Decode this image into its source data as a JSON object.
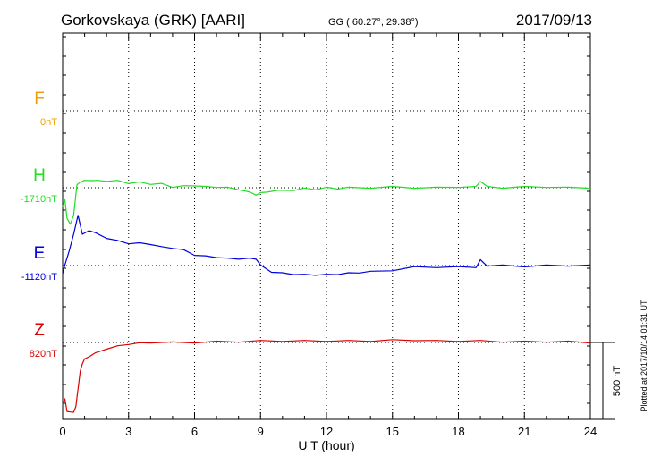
{
  "header": {
    "station": "Gorkovskaya (GRK)  [AARI]",
    "coords": "GG ( 60.27°,  29.38°)",
    "date": "2017/09/13"
  },
  "side_note": "Plotted at 2017/10/14 01:31  UT",
  "chart_data": {
    "type": "line",
    "title": "Gorkovskaya (GRK)  [AARI]",
    "xlabel": "U T (hour)",
    "xlim": [
      0,
      24
    ],
    "xticks": [
      0,
      3,
      6,
      9,
      12,
      15,
      18,
      21,
      24
    ],
    "grid": true,
    "scale_bar": {
      "label": "500 nT",
      "value": 500
    },
    "series": [
      {
        "name": "F",
        "offset_label": "0nT",
        "color": "#f0a000",
        "x": [],
        "y": []
      },
      {
        "name": "H",
        "offset_label": "-1710nT",
        "color": "#22dd22",
        "x": [
          0,
          0.1,
          0.2,
          0.35,
          0.5,
          0.65,
          0.8,
          1.0,
          1.3,
          1.6,
          2.0,
          2.5,
          3.0,
          3.5,
          4.0,
          4.5,
          5.0,
          5.5,
          6.0,
          6.5,
          7.0,
          7.5,
          8.0,
          8.5,
          8.8,
          9.0,
          9.3,
          9.8,
          10.5,
          11.0,
          11.5,
          12.0,
          12.5,
          13.0,
          14.0,
          15.0,
          16.0,
          17.0,
          18.0,
          18.8,
          19.0,
          19.3,
          20.0,
          21.0,
          22.0,
          23.0,
          24.0
        ],
        "y": [
          -120,
          -80,
          -195,
          -240,
          -175,
          15,
          40,
          45,
          50,
          45,
          45,
          45,
          30,
          35,
          25,
          25,
          5,
          10,
          15,
          5,
          5,
          0,
          -10,
          -30,
          -45,
          -35,
          -25,
          -20,
          -15,
          -5,
          -10,
          0,
          -5,
          0,
          0,
          5,
          0,
          0,
          5,
          5,
          45,
          5,
          0,
          5,
          5,
          0,
          0
        ]
      },
      {
        "name": "E",
        "offset_label": "-1120nT",
        "color": "#0000dd",
        "x": [
          0,
          0.1,
          0.3,
          0.5,
          0.7,
          0.9,
          1.2,
          1.5,
          2.0,
          2.5,
          3.0,
          3.5,
          4.0,
          4.5,
          5.0,
          5.5,
          6.0,
          6.5,
          7.0,
          7.5,
          8.0,
          8.5,
          8.8,
          9.0,
          9.5,
          10.0,
          10.5,
          11.0,
          11.5,
          12.0,
          12.5,
          13.0,
          13.5,
          14.0,
          15.0,
          16.0,
          17.0,
          18.0,
          18.8,
          19.0,
          19.3,
          20.0,
          21.0,
          22.0,
          23.0,
          24.0
        ],
        "y": [
          -50,
          0,
          100,
          200,
          330,
          200,
          230,
          210,
          180,
          160,
          145,
          145,
          140,
          120,
          115,
          100,
          70,
          60,
          55,
          45,
          45,
          45,
          45,
          0,
          -40,
          -50,
          -55,
          -60,
          -60,
          -60,
          -55,
          -50,
          -45,
          -40,
          -30,
          -10,
          -10,
          -10,
          -10,
          35,
          0,
          0,
          -5,
          0,
          0,
          0
        ]
      },
      {
        "name": "Z",
        "offset_label": "820nT",
        "color": "#dd0000",
        "x": [
          0,
          0.1,
          0.2,
          0.35,
          0.5,
          0.6,
          0.7,
          0.8,
          0.9,
          1.0,
          1.2,
          1.5,
          2.0,
          2.5,
          3.0,
          3.5,
          4.0,
          5.0,
          6.0,
          7.0,
          8.0,
          9.0,
          10.0,
          11.0,
          12.0,
          13.0,
          14.0,
          15.0,
          16.0,
          17.0,
          18.0,
          19.0,
          20.0,
          21.0,
          22.0,
          23.0,
          24.0
        ],
        "y": [
          -400,
          -370,
          -445,
          -455,
          -450,
          -420,
          -300,
          -190,
          -135,
          -110,
          -90,
          -70,
          -40,
          -25,
          -10,
          -5,
          0,
          0,
          0,
          5,
          5,
          10,
          10,
          10,
          10,
          10,
          10,
          15,
          15,
          10,
          10,
          10,
          5,
          5,
          5,
          5,
          0
        ]
      }
    ]
  }
}
